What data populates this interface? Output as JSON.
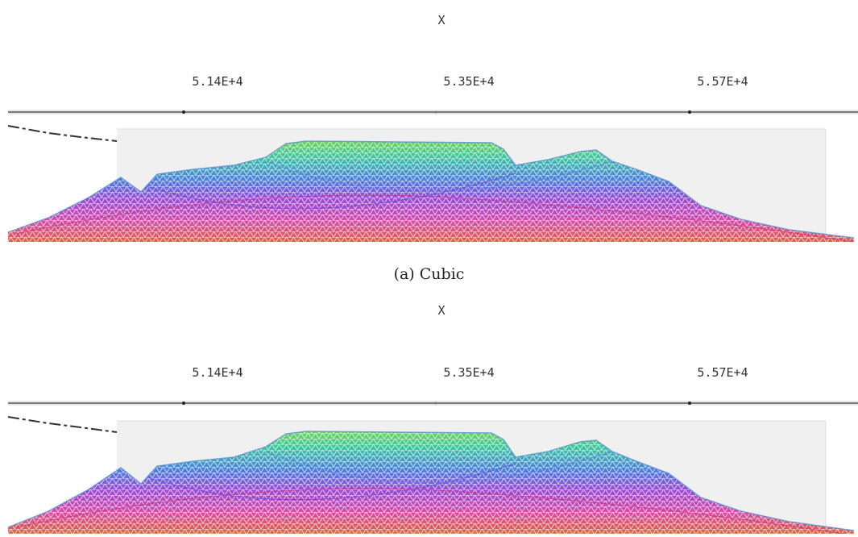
{
  "figure": {
    "caption_label": "(a) Cubic",
    "panels": [
      {
        "axis_name": "X",
        "ticks": [
          "5.14E+4",
          "5.35E+4",
          "5.57E+4"
        ]
      },
      {
        "axis_name": "X",
        "ticks": [
          "5.14E+4",
          "5.35E+4",
          "5.57E+4"
        ]
      }
    ],
    "colors": {
      "low": "#e05a4a",
      "mid_low": "#d84ab0",
      "mid": "#8a4be0",
      "mid_high": "#3aa7c8",
      "high": "#6ecf4a",
      "base": "#d9c24a"
    }
  }
}
